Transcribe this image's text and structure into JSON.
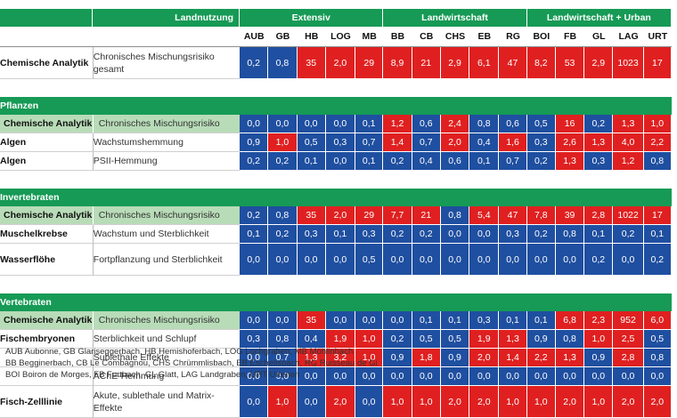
{
  "header": {
    "landnutzung": "Landnutzung",
    "groups": [
      "Extensiv",
      "Landwirtschaft",
      "Landwirtschaft + Urban"
    ],
    "codes": [
      "AUB",
      "GB",
      "HB",
      "LOG",
      "MB",
      "BB",
      "CB",
      "CHS",
      "EB",
      "RG",
      "BOI",
      "FB",
      "GL",
      "LAG",
      "URT"
    ]
  },
  "colors": {
    "blue": "#1f4fa0",
    "red": "#e02020",
    "green": "#169a55",
    "light_green": "#b8dcb8"
  },
  "sections": [
    {
      "title": "",
      "rows": [
        {
          "label": "Chemische Analytik",
          "desc": "Chronisches Mischungsrisiko gesamt",
          "summary": false,
          "values": [
            "0,2",
            "0,8",
            "35",
            "2,0",
            "29",
            "8,9",
            "21",
            "2,9",
            "6,1",
            "47",
            "8,2",
            "53",
            "2,9",
            "1023",
            "17"
          ],
          "colors": [
            "b",
            "b",
            "r",
            "r",
            "r",
            "r",
            "r",
            "r",
            "r",
            "r",
            "r",
            "r",
            "r",
            "r",
            "r"
          ]
        }
      ]
    },
    {
      "title": "Pflanzen",
      "rows": [
        {
          "label": "Chemische Analytik",
          "desc": "Chronisches Mischungsrisiko",
          "summary": true,
          "values": [
            "0,0",
            "0,0",
            "0,0",
            "0,0",
            "0,1",
            "1,2",
            "0,6",
            "2,4",
            "0,8",
            "0,6",
            "0,5",
            "16",
            "0,2",
            "1,3",
            "1,0"
          ],
          "colors": [
            "b",
            "b",
            "b",
            "b",
            "b",
            "r",
            "b",
            "r",
            "b",
            "b",
            "b",
            "r",
            "b",
            "r",
            "r"
          ]
        },
        {
          "label": "Algen",
          "desc": "Wachstumshemmung",
          "summary": false,
          "values": [
            "0,9",
            "1,0",
            "0,5",
            "0,3",
            "0,7",
            "1,4",
            "0,7",
            "2,0",
            "0,4",
            "1,6",
            "0,3",
            "2,6",
            "1,3",
            "4,0",
            "2,2"
          ],
          "colors": [
            "b",
            "r",
            "b",
            "b",
            "b",
            "r",
            "b",
            "r",
            "b",
            "r",
            "b",
            "r",
            "r",
            "r",
            "r"
          ]
        },
        {
          "label": "Algen",
          "desc": "PSII-Hemmung",
          "summary": false,
          "values": [
            "0,2",
            "0,2",
            "0,1",
            "0,0",
            "0,1",
            "0,2",
            "0,4",
            "0,6",
            "0,1",
            "0,7",
            "0,2",
            "1,3",
            "0,3",
            "1,2",
            "0,8"
          ],
          "colors": [
            "b",
            "b",
            "b",
            "b",
            "b",
            "b",
            "b",
            "b",
            "b",
            "b",
            "b",
            "r",
            "b",
            "r",
            "b"
          ]
        }
      ]
    },
    {
      "title": "Invertebraten",
      "rows": [
        {
          "label": "Chemische Analytik",
          "desc": "Chronisches Mischungsrisiko",
          "summary": true,
          "values": [
            "0,2",
            "0,8",
            "35",
            "2,0",
            "29",
            "7,7",
            "21",
            "0,8",
            "5,4",
            "47",
            "7,8",
            "39",
            "2,8",
            "1022",
            "17"
          ],
          "colors": [
            "b",
            "b",
            "r",
            "r",
            "r",
            "r",
            "r",
            "b",
            "r",
            "r",
            "r",
            "r",
            "r",
            "r",
            "r"
          ]
        },
        {
          "label": "Muschelkrebse",
          "desc": "Wachstum und Sterblichkeit",
          "summary": false,
          "values": [
            "0,1",
            "0,2",
            "0,3",
            "0,1",
            "0,3",
            "0,2",
            "0,2",
            "0,0",
            "0,0",
            "0,3",
            "0,2",
            "0,8",
            "0,1",
            "0,2",
            "0,1"
          ],
          "colors": [
            "b",
            "b",
            "b",
            "b",
            "b",
            "b",
            "b",
            "b",
            "b",
            "b",
            "b",
            "b",
            "b",
            "b",
            "b"
          ]
        },
        {
          "label": "Wasserflöhe",
          "desc": "Fortpflanzung und Sterblichkeit",
          "summary": false,
          "values": [
            "0,0",
            "0,0",
            "0,0",
            "0,0",
            "0,5",
            "0,0",
            "0,0",
            "0,0",
            "0,0",
            "0,0",
            "0,0",
            "0,0",
            "0,2",
            "0,0",
            "0,2"
          ],
          "colors": [
            "b",
            "b",
            "b",
            "b",
            "b",
            "b",
            "b",
            "b",
            "b",
            "b",
            "b",
            "b",
            "b",
            "b",
            "b"
          ]
        }
      ]
    },
    {
      "title": "Vertebraten",
      "rows": [
        {
          "label": "Chemische Analytik",
          "desc": "Chronisches Mischungsrisiko",
          "summary": true,
          "values": [
            "0,0",
            "0,0",
            "35",
            "0,0",
            "0,0",
            "0,0",
            "0,1",
            "0,1",
            "0,3",
            "0,1",
            "0,1",
            "6,8",
            "2,3",
            "952",
            "6,0"
          ],
          "colors": [
            "b",
            "b",
            "r",
            "b",
            "b",
            "b",
            "b",
            "b",
            "b",
            "b",
            "b",
            "r",
            "r",
            "r",
            "r"
          ]
        },
        {
          "label": "Fischembryonen",
          "desc": "Sterblichkeit und Schlupf",
          "summary": false,
          "values": [
            "0,3",
            "0,8",
            "0,4",
            "1,9",
            "1,0",
            "0,2",
            "0,5",
            "0,5",
            "1,9",
            "1,3",
            "0,9",
            "0,8",
            "1,0",
            "2,5",
            "0,5"
          ],
          "colors": [
            "b",
            "b",
            "b",
            "r",
            "r",
            "b",
            "b",
            "b",
            "r",
            "r",
            "b",
            "b",
            "r",
            "r",
            "b"
          ]
        },
        {
          "label": "",
          "desc": "Sublethale Effekte",
          "summary": false,
          "values": [
            "0,0",
            "0,7",
            "1,3",
            "3,2",
            "1,0",
            "0,9",
            "1,8",
            "0,9",
            "2,0",
            "1,4",
            "2,2",
            "1,3",
            "0,9",
            "2,8",
            "0,8"
          ],
          "colors": [
            "b",
            "b",
            "r",
            "r",
            "r",
            "b",
            "r",
            "b",
            "r",
            "r",
            "r",
            "r",
            "b",
            "r",
            "b"
          ]
        },
        {
          "label": "",
          "desc": "AChE-Hemmung",
          "summary": false,
          "values": [
            "0,0",
            "0,0",
            "0,0",
            "0,0",
            "0,0",
            "0,0",
            "0,0",
            "0,0",
            "0,0",
            "0,0",
            "0,0",
            "0,0",
            "0,0",
            "0,0",
            "0,0"
          ],
          "colors": [
            "b",
            "b",
            "b",
            "b",
            "b",
            "b",
            "b",
            "b",
            "b",
            "b",
            "b",
            "b",
            "b",
            "b",
            "b"
          ]
        },
        {
          "label": "Fisch-Zelllinie",
          "desc": "Akute, sublethale und Matrix-Effekte",
          "summary": false,
          "values": [
            "0,0",
            "1,0",
            "0,0",
            "2,0",
            "0,0",
            "1,0",
            "1,0",
            "2,0",
            "2,0",
            "1,0",
            "1,0",
            "2,0",
            "1,0",
            "2,0",
            "2,0"
          ],
          "colors": [
            "b",
            "r",
            "b",
            "r",
            "b",
            "r",
            "r",
            "r",
            "r",
            "r",
            "r",
            "r",
            "r",
            "r",
            "r"
          ]
        }
      ]
    }
  ],
  "notes": [
    "AUB Aubonne, GB Glariseggerbach, HB Hemishoferbach, LOG Lochgraben, MB Möhlinbach",
    "BB Begginerbach, CB Le Combagnou, CHS Chrümmlisbach, EB Eschelisbach, RG Ruisseau de Gi",
    "BOI Boiron de Morges, FB Furtbach, GL Glatt, LAG Landgraben, URT Urtenen"
  ]
}
